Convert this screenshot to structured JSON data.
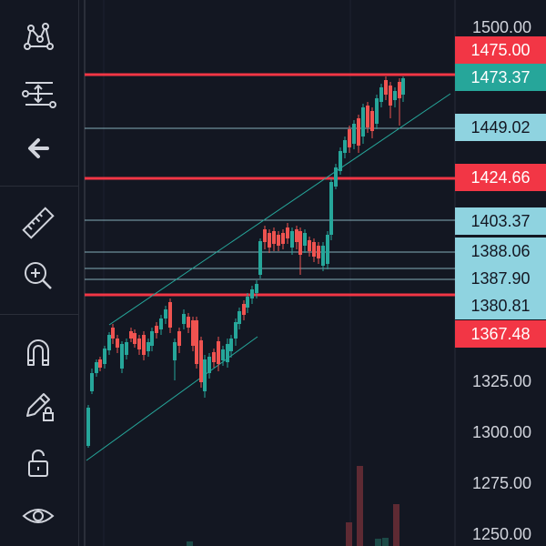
{
  "toolbar": {
    "tools": [
      {
        "name": "pattern-tool",
        "icon": "pattern-icon"
      },
      {
        "name": "fib-tool",
        "icon": "fib-retracement-icon"
      },
      {
        "name": "back-tool",
        "icon": "arrow-left-icon"
      },
      {
        "name": "ruler-tool",
        "icon": "ruler-icon"
      },
      {
        "name": "zoom-tool",
        "icon": "zoom-in-icon"
      },
      {
        "name": "magnet-tool",
        "icon": "magnet-icon"
      },
      {
        "name": "lock-drawing-tool",
        "icon": "pencil-lock-icon"
      },
      {
        "name": "unlock-tool",
        "icon": "unlock-icon"
      },
      {
        "name": "visibility-tool",
        "icon": "eye-icon"
      }
    ]
  },
  "price_axis": {
    "ticks": [
      "1500.00",
      "1325.00",
      "1300.00",
      "1275.00",
      "1250.00"
    ],
    "tags": [
      {
        "label": "1475.00",
        "style": "resistance"
      },
      {
        "label": "1473.37",
        "style": "last"
      },
      {
        "label": "1449.02",
        "style": "level"
      },
      {
        "label": "1424.66",
        "style": "resistance"
      },
      {
        "label": "1403.37",
        "style": "level"
      },
      {
        "label": "1388.06",
        "style": "level"
      },
      {
        "label": "1387.90",
        "style": "level"
      },
      {
        "label": "1380.81",
        "style": "level"
      },
      {
        "label": "1367.48",
        "style": "resistance"
      }
    ]
  },
  "colors": {
    "background": "#131722",
    "up": "#26a69a",
    "down": "#ef5350",
    "resistance_line": "#f23645",
    "level_line": "#a9e0ea",
    "level_tag": "#8fd3e0",
    "last_tag": "#26a69a",
    "trend_line": "#26a69a"
  }
}
